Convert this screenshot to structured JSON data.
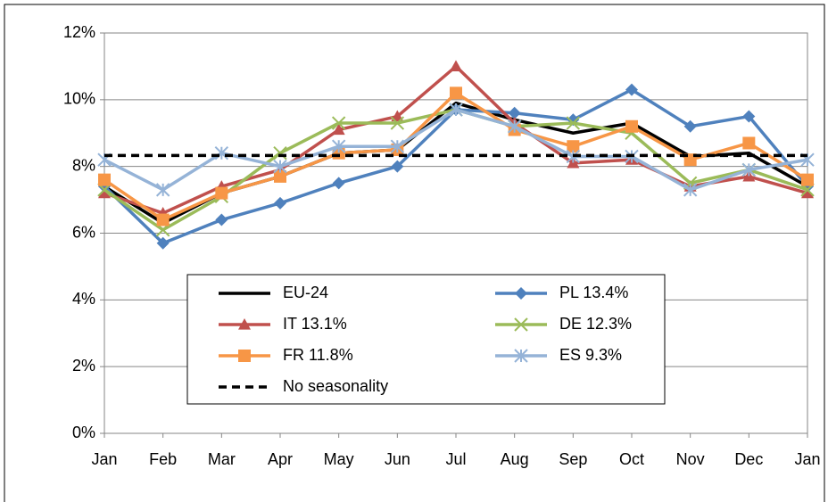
{
  "chart_data": {
    "type": "line",
    "categories": [
      "Jan",
      "Feb",
      "Mar",
      "Apr",
      "May",
      "Jun",
      "Jul",
      "Aug",
      "Sep",
      "Oct",
      "Nov",
      "Dec",
      "Jan"
    ],
    "ylim": [
      0,
      12
    ],
    "yticks": [
      {
        "value": 0,
        "label": "0%"
      },
      {
        "value": 2,
        "label": "2%"
      },
      {
        "value": 4,
        "label": "4%"
      },
      {
        "value": 6,
        "label": "6%"
      },
      {
        "value": 8,
        "label": "8%"
      },
      {
        "value": 10,
        "label": "10%"
      },
      {
        "value": 12,
        "label": "12%"
      }
    ],
    "grid": true,
    "series": [
      {
        "name": "EU-24",
        "color": "#000000",
        "marker": "none",
        "values": [
          7.4,
          6.3,
          7.2,
          7.7,
          8.4,
          8.5,
          9.9,
          9.4,
          9.0,
          9.3,
          8.3,
          8.4,
          7.4
        ]
      },
      {
        "name": "PL 13.4%",
        "color": "#4f81bd",
        "marker": "diamond",
        "values": [
          7.4,
          5.7,
          6.4,
          6.9,
          7.5,
          8.0,
          9.7,
          9.6,
          9.4,
          10.3,
          9.2,
          9.5,
          7.4
        ]
      },
      {
        "name": "IT 13.1%",
        "color": "#c0504d",
        "marker": "triangle",
        "values": [
          7.2,
          6.6,
          7.4,
          7.9,
          9.1,
          9.5,
          11.0,
          9.3,
          8.1,
          8.2,
          7.4,
          7.7,
          7.2
        ]
      },
      {
        "name": "DE 12.3%",
        "color": "#9bbb59",
        "marker": "x",
        "values": [
          7.3,
          6.1,
          7.1,
          8.4,
          9.3,
          9.3,
          9.7,
          9.2,
          9.3,
          9.0,
          7.5,
          7.9,
          7.3
        ]
      },
      {
        "name": "FR 11.8%",
        "color": "#f79646",
        "marker": "square",
        "values": [
          7.6,
          6.4,
          7.2,
          7.7,
          8.4,
          8.5,
          10.2,
          9.1,
          8.6,
          9.2,
          8.2,
          8.7,
          7.6
        ]
      },
      {
        "name": "ES 9.3%",
        "color": "#95b3d7",
        "marker": "asterisk",
        "values": [
          8.2,
          7.3,
          8.4,
          8.0,
          8.6,
          8.6,
          9.7,
          9.2,
          8.3,
          8.3,
          7.3,
          7.9,
          8.2
        ]
      },
      {
        "name": "No seasonality",
        "color": "#000000",
        "marker": "none",
        "dashed": true,
        "values": [
          8.33,
          8.33,
          8.33,
          8.33,
          8.33,
          8.33,
          8.33,
          8.33,
          8.33,
          8.33,
          8.33,
          8.33,
          8.33
        ]
      }
    ]
  }
}
